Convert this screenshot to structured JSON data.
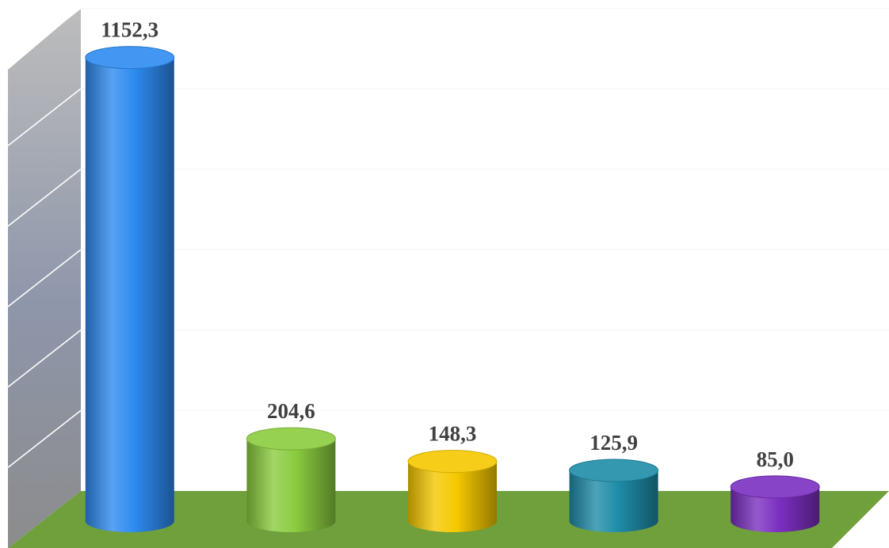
{
  "chart_data": {
    "type": "bar",
    "style": "3d-cylinder",
    "grid": true,
    "legend": "none",
    "ylim": [
      0,
      1200
    ],
    "values": [
      1152.3,
      204.6,
      148.3,
      125.9,
      85.0
    ],
    "data_labels": [
      "1152,3",
      "204,6",
      "148,3",
      "125,9",
      "85,0"
    ],
    "colors": [
      "#2E8BF0",
      "#8BCC3F",
      "#F5C800",
      "#1F8CA8",
      "#7B2FC0"
    ],
    "floor_color": "#6FA03C",
    "wall_color": "#9AA3B5"
  }
}
